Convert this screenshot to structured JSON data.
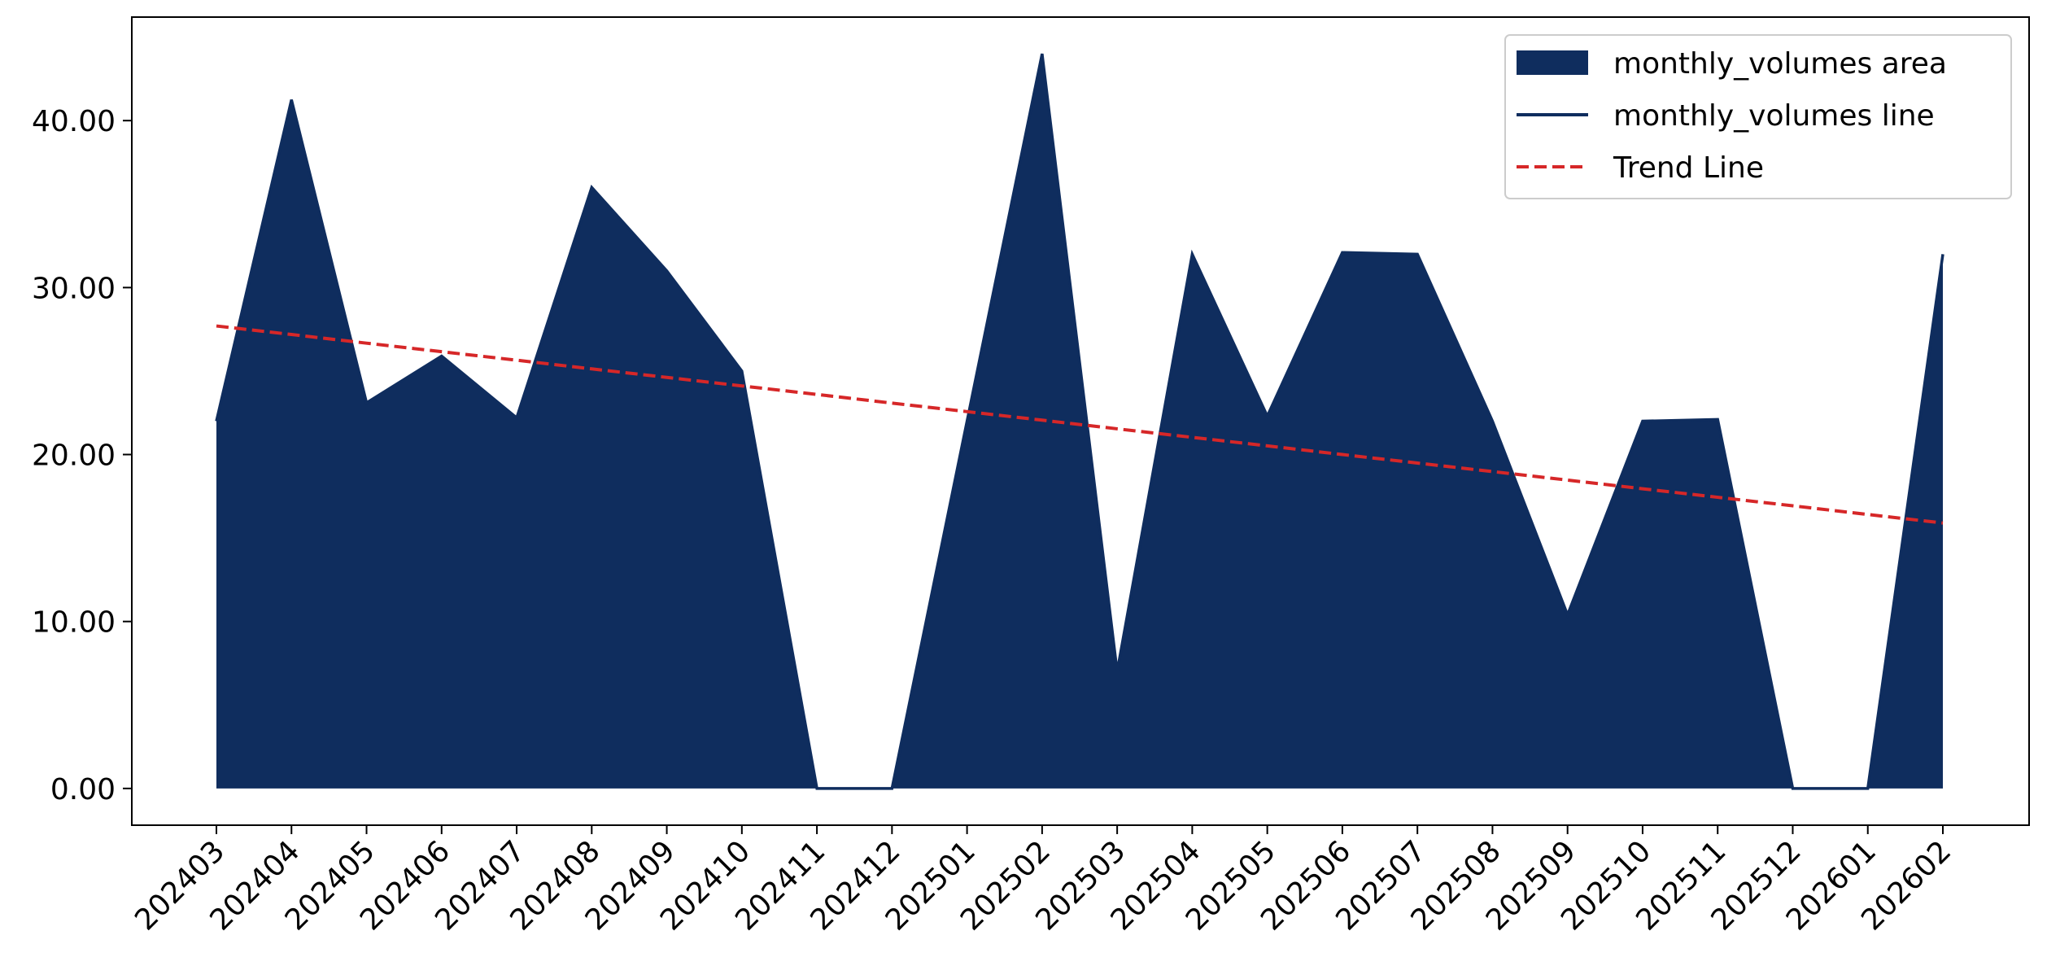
{
  "chart_data": {
    "type": "area",
    "categories": [
      "202403",
      "202404",
      "202405",
      "202406",
      "202407",
      "202408",
      "202409",
      "202410",
      "202411",
      "202412",
      "202501",
      "202502",
      "202503",
      "202504",
      "202505",
      "202506",
      "202507",
      "202508",
      "202509",
      "202510",
      "202511",
      "202512",
      "202601",
      "202602"
    ],
    "series": [
      {
        "name": "monthly_volumes area",
        "color": "#0f2d5e",
        "style": "area",
        "values": [
          22.0,
          41.25,
          23.1,
          25.9,
          22.2,
          36.0,
          31.0,
          25.0,
          0,
          0,
          22.0,
          44.0,
          7.0,
          32.0,
          22.3,
          32.1,
          32.0,
          22.0,
          10.4,
          22.0,
          22.1,
          0,
          0,
          32.0
        ]
      },
      {
        "name": "monthly_volumes line",
        "color": "#0f2d5e",
        "style": "line",
        "values": [
          22.0,
          41.25,
          23.1,
          25.9,
          22.2,
          36.0,
          31.0,
          25.0,
          0,
          0,
          22.0,
          44.0,
          7.0,
          32.0,
          22.3,
          32.1,
          32.0,
          22.0,
          10.4,
          22.0,
          22.1,
          0,
          0,
          32.0
        ]
      },
      {
        "name": "Trend Line",
        "color": "#d62728",
        "style": "dashed",
        "values": [
          27.7,
          27.19,
          26.67,
          26.16,
          25.65,
          25.13,
          24.62,
          24.11,
          23.6,
          23.08,
          22.57,
          22.06,
          21.54,
          21.03,
          20.52,
          20.0,
          19.49,
          18.98,
          18.47,
          17.95,
          17.44,
          16.93,
          16.41,
          15.9
        ]
      }
    ],
    "ylim": [
      -2.2,
      46.2
    ],
    "yticks": [
      {
        "value": 0,
        "label": "0.00"
      },
      {
        "value": 10,
        "label": "10.00"
      },
      {
        "value": 20,
        "label": "20.00"
      },
      {
        "value": 30,
        "label": "30.00"
      },
      {
        "value": 40,
        "label": "40.00"
      }
    ],
    "grid": false,
    "legend": "upper right"
  }
}
